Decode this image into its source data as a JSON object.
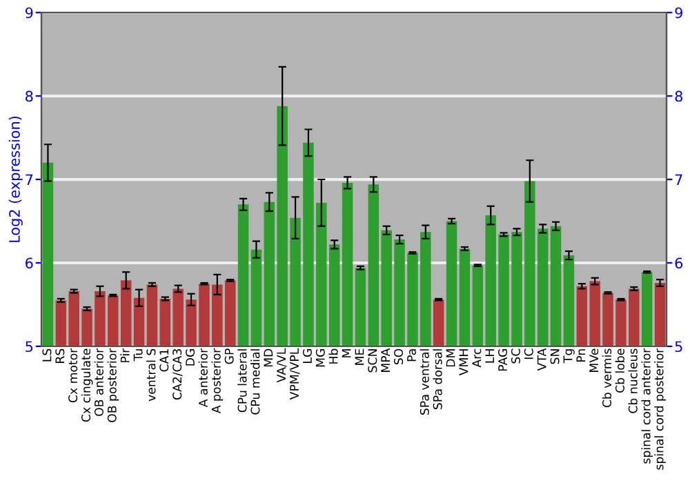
{
  "chart_data": {
    "type": "bar",
    "ylabel": "Log2 (expression)",
    "categories": [
      "LS",
      "RS",
      "Cx motor",
      "Cx cingulate",
      "OB anterior",
      "OB posterior",
      "Pir",
      "Tu",
      "ventral S",
      "CA1",
      "CA2/CA3",
      "DG",
      "A anterior",
      "A posterior",
      "GP",
      "CPu lateral",
      "CPu medial",
      "MD",
      "VA/VL",
      "VPM/VPL",
      "LG",
      "MG",
      "Hb",
      "M",
      "ME",
      "SCN",
      "MPA",
      "SO",
      "Pa",
      "SPa ventral",
      "SPa dorsal",
      "DM",
      "VMH",
      "Arc",
      "LH",
      "PAG",
      "SC",
      "IC",
      "VTA",
      "SN",
      "Tg",
      "Pn",
      "MVe",
      "Cb vermis",
      "Cb lobe",
      "Cb nucleus",
      "spinal cord anterior",
      "spinal cord posterior"
    ],
    "values": [
      7.2,
      5.55,
      5.66,
      5.45,
      5.66,
      5.61,
      5.79,
      5.58,
      5.74,
      5.57,
      5.69,
      5.56,
      5.75,
      5.74,
      5.79,
      6.7,
      6.16,
      6.73,
      7.88,
      6.54,
      7.44,
      6.72,
      6.22,
      6.96,
      5.94,
      6.94,
      6.39,
      6.28,
      6.12,
      6.37,
      5.56,
      6.5,
      6.17,
      5.97,
      6.57,
      6.34,
      6.37,
      6.98,
      6.41,
      6.44,
      6.09,
      5.72,
      5.78,
      5.64,
      5.56,
      5.69,
      5.89,
      5.76
    ],
    "errors": [
      0.22,
      0.02,
      0.02,
      0.02,
      0.06,
      0.01,
      0.1,
      0.1,
      0.02,
      0.02,
      0.04,
      0.07,
      0.01,
      0.12,
      0.01,
      0.07,
      0.1,
      0.11,
      0.47,
      0.25,
      0.16,
      0.28,
      0.05,
      0.07,
      0.02,
      0.09,
      0.05,
      0.05,
      0.01,
      0.08,
      0.01,
      0.03,
      0.02,
      0.01,
      0.11,
      0.02,
      0.04,
      0.25,
      0.05,
      0.05,
      0.05,
      0.03,
      0.04,
      0.01,
      0.01,
      0.02,
      0.01,
      0.04
    ],
    "colors": [
      "#2e9e2e",
      "#b23a3a",
      "#b23a3a",
      "#b23a3a",
      "#b23a3a",
      "#b23a3a",
      "#b23a3a",
      "#b23a3a",
      "#b23a3a",
      "#b23a3a",
      "#b23a3a",
      "#b23a3a",
      "#b23a3a",
      "#b23a3a",
      "#b23a3a",
      "#2e9e2e",
      "#2e9e2e",
      "#2e9e2e",
      "#2e9e2e",
      "#2e9e2e",
      "#2e9e2e",
      "#2e9e2e",
      "#2e9e2e",
      "#2e9e2e",
      "#2e9e2e",
      "#2e9e2e",
      "#2e9e2e",
      "#2e9e2e",
      "#2e9e2e",
      "#2e9e2e",
      "#b23a3a",
      "#2e9e2e",
      "#2e9e2e",
      "#2e9e2e",
      "#2e9e2e",
      "#2e9e2e",
      "#2e9e2e",
      "#2e9e2e",
      "#2e9e2e",
      "#2e9e2e",
      "#2e9e2e",
      "#b23a3a",
      "#b23a3a",
      "#b23a3a",
      "#b23a3a",
      "#b23a3a",
      "#2e9e2e",
      "#b23a3a"
    ],
    "ylim": [
      5,
      9
    ],
    "yticks": [
      5,
      6,
      7,
      8,
      9
    ],
    "y2lim": [
      5,
      9
    ],
    "y2ticks": [
      5,
      6,
      7,
      8,
      9
    ],
    "grid": "y"
  }
}
